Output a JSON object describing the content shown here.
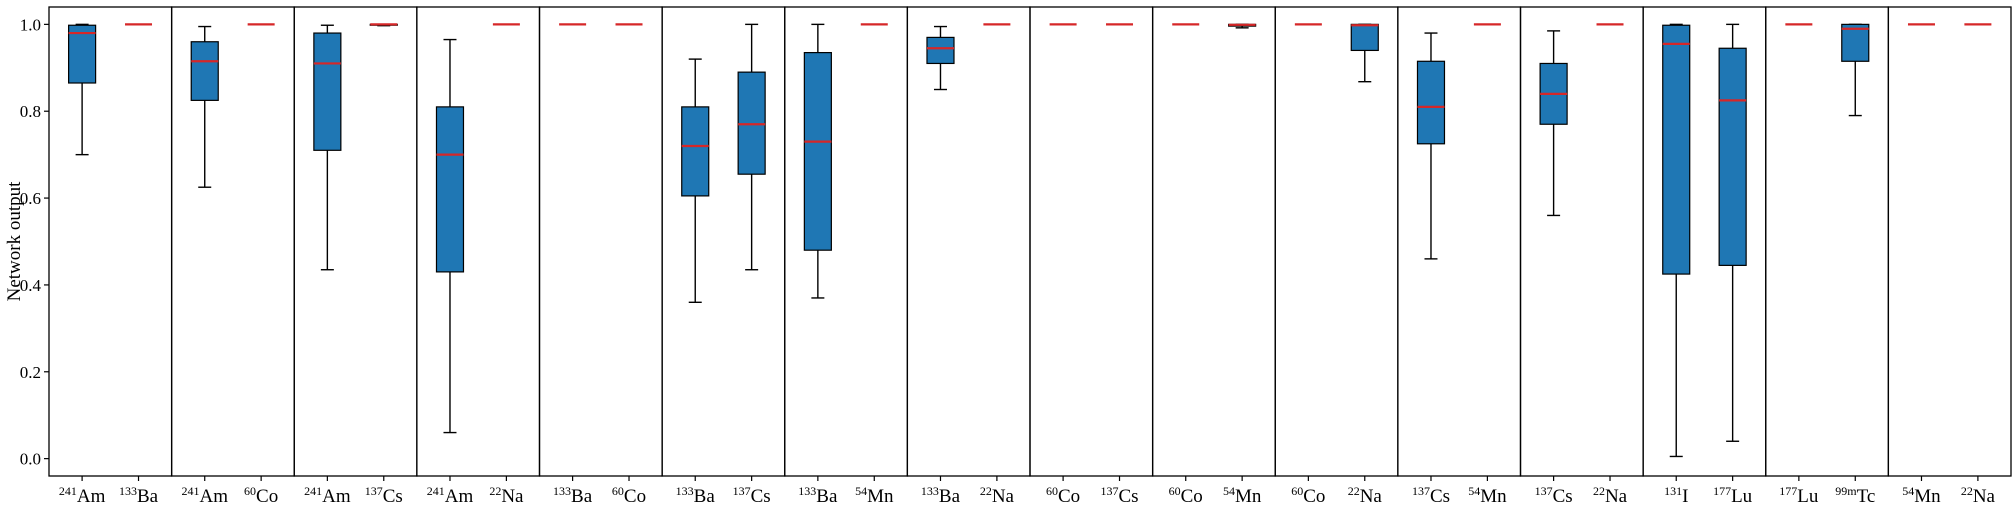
{
  "chart_data": {
    "type": "box",
    "ylabel": "Network output",
    "ylim": [
      -0.04,
      1.04
    ],
    "yticks": [
      "0.0",
      "0.2",
      "0.4",
      "0.6",
      "0.8",
      "1.0"
    ],
    "grid": false,
    "colors": {
      "box": "#1f77b4",
      "median": "#d62728",
      "whisker": "#000000"
    },
    "panels": [
      {
        "boxes": [
          {
            "label": {
              "sup": "241",
              "el": "Am"
            },
            "min": 0.7,
            "q1": 0.865,
            "median": 0.98,
            "q3": 0.998,
            "max": 1.0
          },
          {
            "label": {
              "sup": "133",
              "el": "Ba"
            },
            "min": 0.999,
            "q1": 0.999,
            "median": 1.0,
            "q3": 1.0,
            "max": 1.0
          }
        ]
      },
      {
        "boxes": [
          {
            "label": {
              "sup": "241",
              "el": "Am"
            },
            "min": 0.625,
            "q1": 0.825,
            "median": 0.915,
            "q3": 0.96,
            "max": 0.995
          },
          {
            "label": {
              "sup": "60",
              "el": "Co"
            },
            "min": 1.0,
            "q1": 1.0,
            "median": 1.0,
            "q3": 1.0,
            "max": 1.0
          }
        ]
      },
      {
        "boxes": [
          {
            "label": {
              "sup": "241",
              "el": "Am"
            },
            "min": 0.435,
            "q1": 0.71,
            "median": 0.91,
            "q3": 0.98,
            "max": 0.998
          },
          {
            "label": {
              "sup": "137",
              "el": "Cs"
            },
            "min": 0.997,
            "q1": 0.998,
            "median": 1.0,
            "q3": 1.0,
            "max": 1.0
          }
        ]
      },
      {
        "boxes": [
          {
            "label": {
              "sup": "241",
              "el": "Am"
            },
            "min": 0.06,
            "q1": 0.43,
            "median": 0.7,
            "q3": 0.81,
            "max": 0.965
          },
          {
            "label": {
              "sup": "22",
              "el": "Na"
            },
            "min": 1.0,
            "q1": 1.0,
            "median": 1.0,
            "q3": 1.0,
            "max": 1.0
          }
        ]
      },
      {
        "boxes": [
          {
            "label": {
              "sup": "133",
              "el": "Ba"
            },
            "min": 1.0,
            "q1": 1.0,
            "median": 1.0,
            "q3": 1.0,
            "max": 1.0
          },
          {
            "label": {
              "sup": "60",
              "el": "Co"
            },
            "min": 1.0,
            "q1": 1.0,
            "median": 1.0,
            "q3": 1.0,
            "max": 1.0
          }
        ]
      },
      {
        "boxes": [
          {
            "label": {
              "sup": "133",
              "el": "Ba"
            },
            "min": 0.36,
            "q1": 0.605,
            "median": 0.72,
            "q3": 0.81,
            "max": 0.92
          },
          {
            "label": {
              "sup": "137",
              "el": "Cs"
            },
            "min": 0.435,
            "q1": 0.655,
            "median": 0.77,
            "q3": 0.89,
            "max": 1.0
          }
        ]
      },
      {
        "boxes": [
          {
            "label": {
              "sup": "133",
              "el": "Ba"
            },
            "min": 0.37,
            "q1": 0.48,
            "median": 0.73,
            "q3": 0.935,
            "max": 1.0
          },
          {
            "label": {
              "sup": "54",
              "el": "Mn"
            },
            "min": 1.0,
            "q1": 1.0,
            "median": 1.0,
            "q3": 1.0,
            "max": 1.0
          }
        ]
      },
      {
        "boxes": [
          {
            "label": {
              "sup": "133",
              "el": "Ba"
            },
            "min": 0.85,
            "q1": 0.91,
            "median": 0.945,
            "q3": 0.97,
            "max": 0.995
          },
          {
            "label": {
              "sup": "22",
              "el": "Na"
            },
            "min": 1.0,
            "q1": 1.0,
            "median": 1.0,
            "q3": 1.0,
            "max": 1.0
          }
        ]
      },
      {
        "boxes": [
          {
            "label": {
              "sup": "60",
              "el": "Co"
            },
            "min": 1.0,
            "q1": 1.0,
            "median": 1.0,
            "q3": 1.0,
            "max": 1.0
          },
          {
            "label": {
              "sup": "137",
              "el": "Cs"
            },
            "min": 1.0,
            "q1": 1.0,
            "median": 1.0,
            "q3": 1.0,
            "max": 1.0
          }
        ]
      },
      {
        "boxes": [
          {
            "label": {
              "sup": "60",
              "el": "Co"
            },
            "min": 1.0,
            "q1": 1.0,
            "median": 1.0,
            "q3": 1.0,
            "max": 1.0
          },
          {
            "label": {
              "sup": "54",
              "el": "Mn"
            },
            "min": 0.992,
            "q1": 0.996,
            "median": 0.999,
            "q3": 1.0,
            "max": 1.0
          }
        ]
      },
      {
        "boxes": [
          {
            "label": {
              "sup": "60",
              "el": "Co"
            },
            "min": 1.0,
            "q1": 1.0,
            "median": 1.0,
            "q3": 1.0,
            "max": 1.0
          },
          {
            "label": {
              "sup": "22",
              "el": "Na"
            },
            "min": 0.868,
            "q1": 0.94,
            "median": 0.998,
            "q3": 1.0,
            "max": 1.0
          }
        ]
      },
      {
        "boxes": [
          {
            "label": {
              "sup": "137",
              "el": "Cs"
            },
            "min": 0.46,
            "q1": 0.725,
            "median": 0.81,
            "q3": 0.915,
            "max": 0.98
          },
          {
            "label": {
              "sup": "54",
              "el": "Mn"
            },
            "min": 1.0,
            "q1": 1.0,
            "median": 1.0,
            "q3": 1.0,
            "max": 1.0
          }
        ]
      },
      {
        "boxes": [
          {
            "label": {
              "sup": "137",
              "el": "Cs"
            },
            "min": 0.56,
            "q1": 0.77,
            "median": 0.84,
            "q3": 0.91,
            "max": 0.985
          },
          {
            "label": {
              "sup": "22",
              "el": "Na"
            },
            "min": 1.0,
            "q1": 1.0,
            "median": 1.0,
            "q3": 1.0,
            "max": 1.0
          }
        ]
      },
      {
        "boxes": [
          {
            "label": {
              "sup": "131",
              "el": "I"
            },
            "min": 0.005,
            "q1": 0.425,
            "median": 0.955,
            "q3": 0.998,
            "max": 1.0
          },
          {
            "label": {
              "sup": "177",
              "el": "Lu"
            },
            "min": 0.04,
            "q1": 0.445,
            "median": 0.825,
            "q3": 0.945,
            "max": 1.0
          }
        ]
      },
      {
        "boxes": [
          {
            "label": {
              "sup": "177",
              "el": "Lu"
            },
            "min": 1.0,
            "q1": 1.0,
            "median": 1.0,
            "q3": 1.0,
            "max": 1.0
          },
          {
            "label": {
              "sup": "99m",
              "el": "Tc"
            },
            "min": 0.79,
            "q1": 0.915,
            "median": 0.99,
            "q3": 1.0,
            "max": 1.0
          }
        ]
      },
      {
        "boxes": [
          {
            "label": {
              "sup": "54",
              "el": "Mn"
            },
            "min": 1.0,
            "q1": 1.0,
            "median": 1.0,
            "q3": 1.0,
            "max": 1.0
          },
          {
            "label": {
              "sup": "22",
              "el": "Na"
            },
            "min": 1.0,
            "q1": 1.0,
            "median": 1.0,
            "q3": 1.0,
            "max": 1.0
          }
        ]
      }
    ]
  }
}
